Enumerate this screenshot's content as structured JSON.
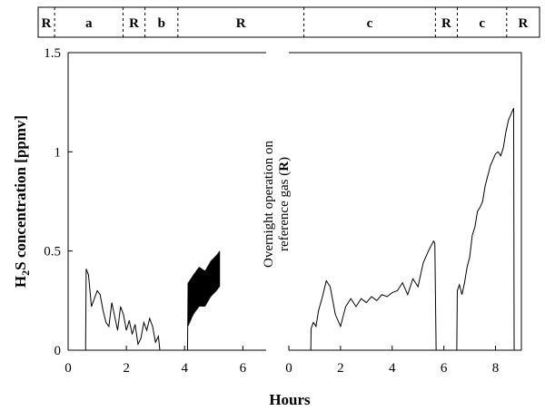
{
  "chart_data": {
    "type": "line",
    "ylabel": {
      "main": "H",
      "sub": "2",
      "rest": "S concentration [ppmv]"
    },
    "xlabel": "Hours",
    "ylim": [
      0,
      1.5
    ],
    "yticks": [
      "0",
      "0.5",
      "1",
      "1.5"
    ],
    "grid": false,
    "legend": "none",
    "phase_bar": [
      {
        "label": "R",
        "x0": 0,
        "x1": 0.6
      },
      {
        "label": "a",
        "x0": 0.6,
        "x1": 3.1
      },
      {
        "label": "R",
        "x0": 3.1,
        "x1": 3.9
      },
      {
        "label": "b",
        "x0": 3.9,
        "x1": 5.1
      },
      {
        "label": "R",
        "x0": 5.1,
        "x1": 9.7
      },
      {
        "label": "c",
        "x0": 9.7,
        "x1": 14.5
      },
      {
        "label": "R",
        "x0": 14.5,
        "x1": 15.3
      },
      {
        "label": "c",
        "x0": 15.3,
        "x1": 17.1
      },
      {
        "label": "R",
        "x0": 17.1,
        "x1": 18.3
      }
    ],
    "annotation": {
      "line1": "Overnight operation on",
      "line2_prefix": "reference gas (",
      "line2_bold": "R",
      "line2_suffix": ")"
    },
    "panels": [
      {
        "name": "left",
        "xlim": [
          0,
          6.8
        ],
        "xticks": [
          "0",
          "2",
          "4",
          "6"
        ],
        "segments": [
          {
            "phase": "a",
            "x": [
              0.6,
              0.62,
              0.7,
              0.8,
              0.9,
              1.0,
              1.1,
              1.2,
              1.3,
              1.4,
              1.5,
              1.6,
              1.7,
              1.8,
              1.9,
              2.0,
              2.1,
              2.2,
              2.3,
              2.4,
              2.5,
              2.6,
              2.7,
              2.8,
              2.9,
              3.0,
              3.1,
              3.15
            ],
            "y": [
              0.0,
              0.41,
              0.38,
              0.22,
              0.26,
              0.3,
              0.28,
              0.2,
              0.14,
              0.12,
              0.24,
              0.17,
              0.1,
              0.22,
              0.18,
              0.1,
              0.15,
              0.08,
              0.13,
              0.03,
              0.06,
              0.14,
              0.1,
              0.16,
              0.12,
              0.04,
              0.07,
              0.0
            ]
          },
          {
            "phase": "b",
            "noisy": true,
            "x": [
              4.1,
              4.12,
              4.3,
              4.5,
              4.7,
              4.9,
              5.1,
              5.2
            ],
            "low": [
              0.0,
              0.12,
              0.18,
              0.22,
              0.22,
              0.27,
              0.3,
              0.32
            ],
            "high": [
              0.0,
              0.34,
              0.38,
              0.42,
              0.4,
              0.45,
              0.48,
              0.5
            ]
          }
        ]
      },
      {
        "name": "right",
        "xlim": [
          0,
          9
        ],
        "xticks": [
          "0",
          "2",
          "4",
          "6",
          "8"
        ],
        "segments": [
          {
            "phase": "c",
            "x": [
              0.85,
              0.86,
              0.95,
              1.05,
              1.15,
              1.3,
              1.45,
              1.6,
              1.8,
              2.0,
              2.2,
              2.4,
              2.6,
              2.8,
              3.0,
              3.2,
              3.4,
              3.6,
              3.8,
              4.0,
              4.2,
              4.4,
              4.6,
              4.8,
              5.0,
              5.2,
              5.4,
              5.6,
              5.65,
              5.7
            ],
            "y": [
              0.0,
              0.11,
              0.14,
              0.12,
              0.2,
              0.27,
              0.35,
              0.32,
              0.18,
              0.12,
              0.22,
              0.26,
              0.22,
              0.26,
              0.24,
              0.27,
              0.25,
              0.28,
              0.27,
              0.29,
              0.3,
              0.34,
              0.28,
              0.36,
              0.32,
              0.44,
              0.5,
              0.55,
              0.54,
              0.0
            ]
          },
          {
            "phase": "c",
            "x": [
              6.5,
              6.52,
              6.6,
              6.7,
              6.8,
              6.9,
              7.0,
              7.1,
              7.2,
              7.3,
              7.4,
              7.5,
              7.6,
              7.7,
              7.8,
              7.9,
              8.0,
              8.1,
              8.2,
              8.3,
              8.4,
              8.5,
              8.6,
              8.7,
              8.72
            ],
            "y": [
              0.0,
              0.3,
              0.33,
              0.28,
              0.34,
              0.42,
              0.47,
              0.58,
              0.62,
              0.7,
              0.72,
              0.75,
              0.83,
              0.88,
              0.93,
              0.96,
              0.99,
              1.0,
              0.98,
              1.02,
              1.1,
              1.16,
              1.19,
              1.22,
              0.0
            ]
          }
        ]
      }
    ]
  }
}
